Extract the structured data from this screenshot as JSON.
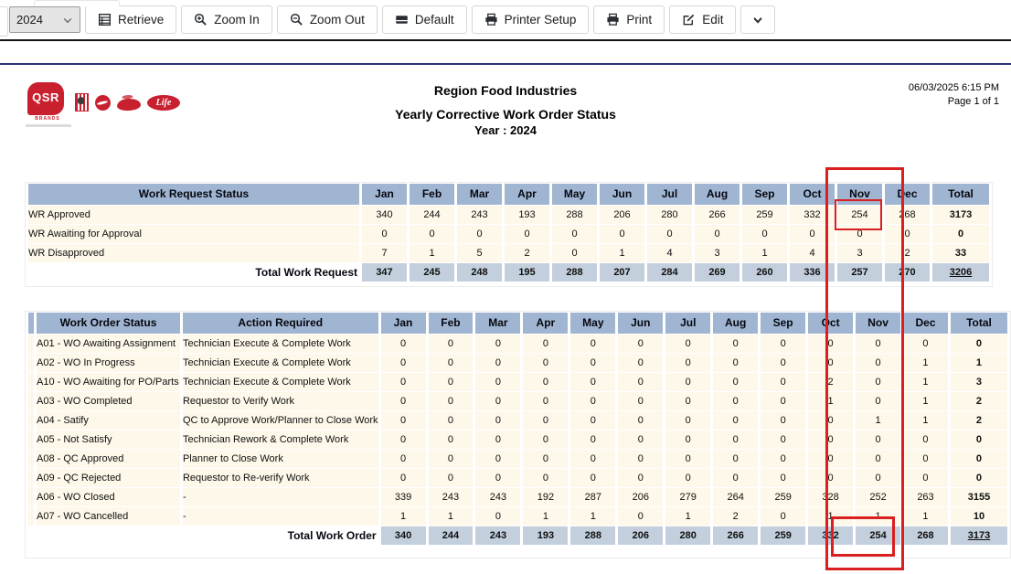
{
  "toolbar": {
    "year_select": {
      "value": "2024"
    },
    "buttons": [
      {
        "label": "Retrieve"
      },
      {
        "label": "Zoom In"
      },
      {
        "label": "Zoom Out"
      },
      {
        "label": "Default"
      },
      {
        "label": "Printer Setup"
      },
      {
        "label": "Print"
      },
      {
        "label": "Edit"
      }
    ]
  },
  "report": {
    "company": "Region Food Industries",
    "title": "Yearly Corrective Work Order Status",
    "year_line": "Year : 2024",
    "datetime": "06/03/2025 6:15 PM",
    "page": "Page 1 of 1",
    "logos": {
      "qsr_text": "QSR",
      "brands_text": "BRANDS",
      "life_text": "Life"
    }
  },
  "months": [
    "Jan",
    "Feb",
    "Mar",
    "Apr",
    "May",
    "Jun",
    "Jul",
    "Aug",
    "Sep",
    "Oct",
    "Nov",
    "Dec"
  ],
  "total_label": "Total",
  "work_request_table": {
    "title": "Work Request Status",
    "rows": [
      {
        "label": "WR Approved",
        "values": [
          340,
          244,
          243,
          193,
          288,
          206,
          280,
          266,
          259,
          332,
          254,
          268
        ],
        "total": 3173
      },
      {
        "label": "WR Awaiting for Approval",
        "values": [
          0,
          0,
          0,
          0,
          0,
          0,
          0,
          0,
          0,
          0,
          0,
          0
        ],
        "total": 0
      },
      {
        "label": "WR Disapproved",
        "values": [
          7,
          1,
          5,
          2,
          0,
          1,
          4,
          3,
          1,
          4,
          3,
          2
        ],
        "total": 33
      }
    ],
    "total_row": {
      "label": "Total Work Request",
      "values": [
        347,
        245,
        248,
        195,
        288,
        207,
        284,
        269,
        260,
        336,
        257,
        270
      ],
      "total": 3206
    }
  },
  "work_order_table": {
    "status_header": "Work Order Status",
    "action_header": "Action Required",
    "rows": [
      {
        "status": "A01 - WO Awaiting Assignment",
        "action": "Technician Execute & Complete Work",
        "values": [
          0,
          0,
          0,
          0,
          0,
          0,
          0,
          0,
          0,
          0,
          0,
          0
        ],
        "total": 0
      },
      {
        "status": "A02 - WO In Progress",
        "action": "Technician Execute & Complete Work",
        "values": [
          0,
          0,
          0,
          0,
          0,
          0,
          0,
          0,
          0,
          0,
          0,
          1
        ],
        "total": 1
      },
      {
        "status": "A10 - WO Awaiting for PO/Parts",
        "action": "Technician Execute & Complete Work",
        "values": [
          0,
          0,
          0,
          0,
          0,
          0,
          0,
          0,
          0,
          2,
          0,
          1
        ],
        "total": 3
      },
      {
        "status": "A03 - WO Completed",
        "action": "Requestor to Verify Work",
        "values": [
          0,
          0,
          0,
          0,
          0,
          0,
          0,
          0,
          0,
          1,
          0,
          1
        ],
        "total": 2
      },
      {
        "status": "A04 - Satify",
        "action": "QC to Approve Work/Planner to Close Work",
        "values": [
          0,
          0,
          0,
          0,
          0,
          0,
          0,
          0,
          0,
          0,
          1,
          1
        ],
        "total": 2
      },
      {
        "status": "A05 - Not Satisfy",
        "action": "Technician Rework & Complete Work",
        "values": [
          0,
          0,
          0,
          0,
          0,
          0,
          0,
          0,
          0,
          0,
          0,
          0
        ],
        "total": 0
      },
      {
        "status": "A08 - QC Approved",
        "action": "Planner to Close Work",
        "values": [
          0,
          0,
          0,
          0,
          0,
          0,
          0,
          0,
          0,
          0,
          0,
          0
        ],
        "total": 0
      },
      {
        "status": "A09 - QC Rejected",
        "action": "Requestor to Re-verify Work",
        "values": [
          0,
          0,
          0,
          0,
          0,
          0,
          0,
          0,
          0,
          0,
          0,
          0
        ],
        "total": 0
      },
      {
        "status": "A06 - WO Closed",
        "action": "-",
        "values": [
          339,
          243,
          243,
          192,
          287,
          206,
          279,
          264,
          259,
          328,
          252,
          263
        ],
        "total": 3155
      },
      {
        "status": "A07 - WO Cancelled",
        "action": "-",
        "values": [
          1,
          1,
          0,
          1,
          1,
          0,
          1,
          2,
          0,
          1,
          1,
          1
        ],
        "total": 10
      }
    ],
    "total_row": {
      "label": "Total Work Order",
      "values": [
        340,
        244,
        243,
        193,
        288,
        206,
        280,
        266,
        259,
        332,
        254,
        268
      ],
      "total": 3173
    }
  },
  "colors": {
    "header_bg": "#a0b5d1",
    "total_row_bg": "#c3cfdd",
    "data_row_bg": "#fdf8e9",
    "highlight": "#d91f1f",
    "brand_red": "#c8202f",
    "rule_navy": "#28307c"
  }
}
